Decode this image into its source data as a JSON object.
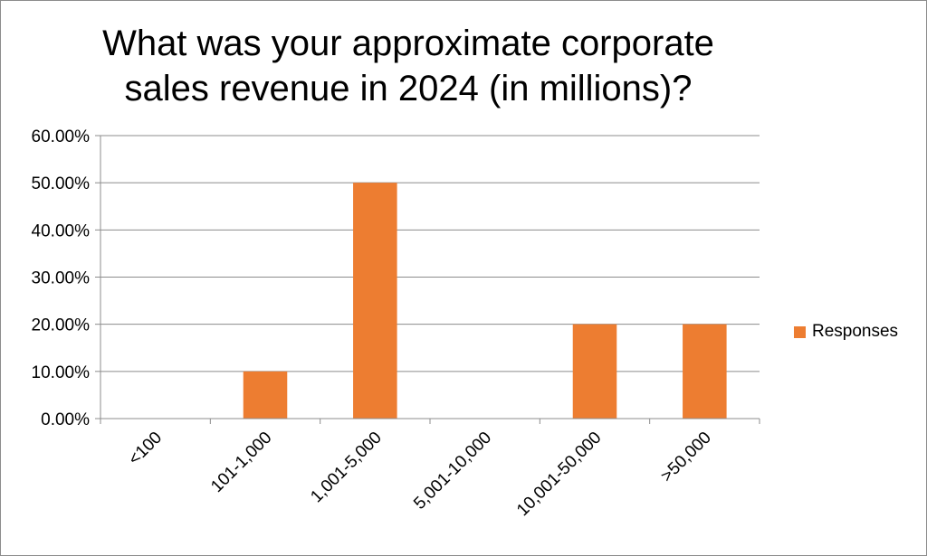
{
  "chart_data": {
    "type": "bar",
    "title": "What was your approximate corporate sales revenue in 2024 (in millions)?",
    "categories": [
      "<100",
      "101-1,000",
      "1,001-5,000",
      "5,001-10,000",
      "10,001-50,000",
      ">50,000"
    ],
    "series": [
      {
        "name": "Responses",
        "values": [
          0,
          10,
          50,
          0,
          20,
          20
        ],
        "color": "#ED7D31"
      }
    ],
    "y_ticks": [
      "0.00%",
      "10.00%",
      "20.00%",
      "30.00%",
      "40.00%",
      "50.00%",
      "60.00%"
    ],
    "ylim": [
      0,
      60
    ],
    "y_format": "percent",
    "grid": true,
    "legend_position": "right",
    "xlabel": "",
    "ylabel": ""
  }
}
